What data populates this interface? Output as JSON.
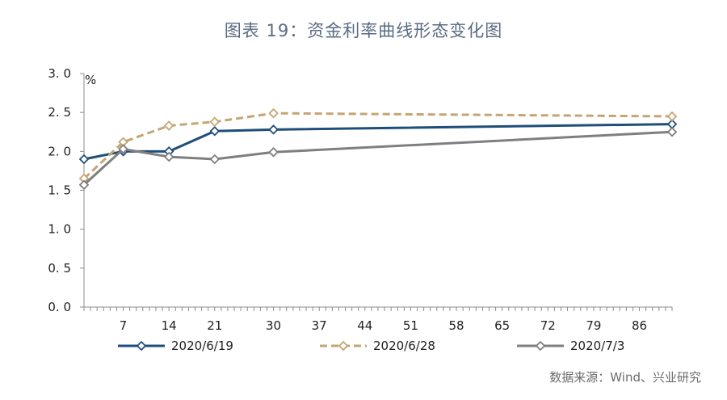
{
  "title": "图表 19：资金利率曲线形态变化图",
  "source": "数据来源：Wind、兴业研究",
  "chart_data": {
    "type": "line",
    "title": "图表 19：资金利率曲线形态变化图",
    "ylabel": "%",
    "ylim": [
      0,
      3.0
    ],
    "yticks": [
      "0. 0",
      "0. 5",
      "1. 0",
      "1. 5",
      "2. 0",
      "2. 5",
      "3. 0"
    ],
    "xlim": [
      1,
      91
    ],
    "xticks": [
      7,
      14,
      21,
      30,
      37,
      44,
      51,
      58,
      65,
      72,
      79,
      86
    ],
    "grid": false,
    "legend_position": "bottom",
    "series": [
      {
        "name": "2020/6/19",
        "color": "#1f4e79",
        "dash": "solid",
        "x": [
          1,
          7,
          14,
          21,
          30,
          91
        ],
        "y": [
          1.9,
          2.0,
          2.0,
          2.26,
          2.28,
          2.35
        ]
      },
      {
        "name": "2020/6/28",
        "color": "#c4a574",
        "dash": "dashed",
        "x": [
          1,
          7,
          14,
          21,
          30,
          91
        ],
        "y": [
          1.65,
          2.12,
          2.33,
          2.38,
          2.49,
          2.45
        ]
      },
      {
        "name": "2020/7/3",
        "color": "#7f7f7f",
        "dash": "solid",
        "x": [
          1,
          7,
          14,
          21,
          30,
          91
        ],
        "y": [
          1.57,
          2.03,
          1.93,
          1.9,
          1.99,
          2.25
        ]
      }
    ]
  }
}
